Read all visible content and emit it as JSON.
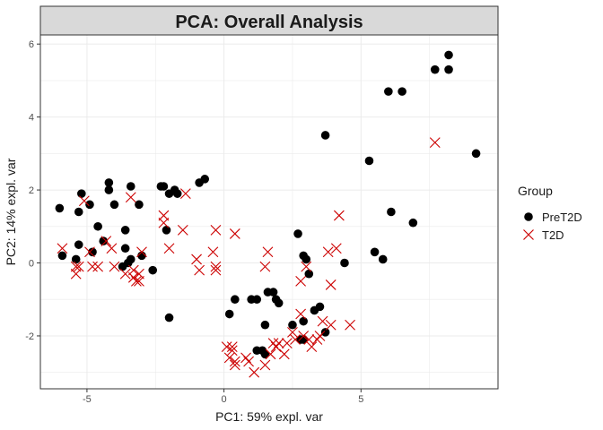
{
  "chart_data": {
    "type": "scatter",
    "title": "PCA: Overall Analysis",
    "xlabel": "PC1: 59% expl. var",
    "ylabel": "PC2: 14% expl. var",
    "xlim": [
      -6.7,
      10
    ],
    "ylim": [
      -3.45,
      6.25
    ],
    "x_ticks": [
      -5,
      0,
      5
    ],
    "y_ticks": [
      -2,
      0,
      2,
      4,
      6
    ],
    "grid": true,
    "legend": {
      "title": "Group",
      "position": "right"
    },
    "series": [
      {
        "name": "PreT2D",
        "marker": "circle",
        "color": "#000000",
        "points": [
          [
            -6.0,
            1.5
          ],
          [
            -5.9,
            0.2
          ],
          [
            -5.2,
            1.9
          ],
          [
            -5.3,
            1.4
          ],
          [
            -5.3,
            0.5
          ],
          [
            -5.4,
            0.1
          ],
          [
            -4.9,
            1.6
          ],
          [
            -4.8,
            0.3
          ],
          [
            -4.6,
            1.0
          ],
          [
            -4.4,
            0.6
          ],
          [
            -4.2,
            2.2
          ],
          [
            -4.2,
            2.0
          ],
          [
            -4.0,
            1.6
          ],
          [
            -3.6,
            0.9
          ],
          [
            -3.6,
            0.4
          ],
          [
            -3.4,
            2.1
          ],
          [
            -3.1,
            1.6
          ],
          [
            -3.0,
            0.2
          ],
          [
            -3.5,
            0.0
          ],
          [
            -3.7,
            -0.1
          ],
          [
            -3.4,
            0.1
          ],
          [
            -2.6,
            -0.2
          ],
          [
            -2.3,
            2.1
          ],
          [
            -2.2,
            2.1
          ],
          [
            -2.0,
            1.9
          ],
          [
            -2.1,
            0.9
          ],
          [
            -1.8,
            2.0
          ],
          [
            -1.7,
            1.9
          ],
          [
            -0.9,
            2.2
          ],
          [
            -0.7,
            2.3
          ],
          [
            -2.0,
            -1.5
          ],
          [
            0.2,
            -1.4
          ],
          [
            0.4,
            -1.0
          ],
          [
            1.0,
            -1.0
          ],
          [
            1.2,
            -1.0
          ],
          [
            1.5,
            -1.7
          ],
          [
            1.6,
            -0.8
          ],
          [
            1.8,
            -0.8
          ],
          [
            1.9,
            -1.0
          ],
          [
            2.0,
            -1.1
          ],
          [
            1.2,
            -2.4
          ],
          [
            1.4,
            -2.4
          ],
          [
            1.5,
            -2.5
          ],
          [
            2.5,
            -1.7
          ],
          [
            2.7,
            0.8
          ],
          [
            2.9,
            0.2
          ],
          [
            3.0,
            0.1
          ],
          [
            3.1,
            -0.3
          ],
          [
            2.9,
            -1.6
          ],
          [
            3.3,
            -1.3
          ],
          [
            3.5,
            -1.2
          ],
          [
            3.7,
            -1.9
          ],
          [
            2.9,
            -2.1
          ],
          [
            2.8,
            -2.1
          ],
          [
            4.4,
            0.0
          ],
          [
            3.7,
            3.5
          ],
          [
            5.3,
            2.8
          ],
          [
            5.5,
            0.3
          ],
          [
            5.8,
            0.1
          ],
          [
            6.0,
            4.7
          ],
          [
            6.1,
            1.4
          ],
          [
            6.5,
            4.7
          ],
          [
            6.9,
            1.1
          ],
          [
            7.7,
            5.3
          ],
          [
            8.2,
            5.7
          ],
          [
            8.2,
            5.3
          ],
          [
            9.2,
            3.0
          ]
        ]
      },
      {
        "name": "T2D",
        "marker": "x",
        "color": "#cc0000",
        "points": [
          [
            -5.9,
            0.4
          ],
          [
            -5.4,
            -0.1
          ],
          [
            -5.4,
            -0.3
          ],
          [
            -5.3,
            -0.1
          ],
          [
            -5.1,
            1.7
          ],
          [
            -4.9,
            0.3
          ],
          [
            -4.8,
            -0.1
          ],
          [
            -4.6,
            -0.1
          ],
          [
            -4.3,
            0.6
          ],
          [
            -4.1,
            0.4
          ],
          [
            -4.0,
            -0.1
          ],
          [
            -3.6,
            -0.3
          ],
          [
            -3.4,
            1.8
          ],
          [
            -3.3,
            -0.2
          ],
          [
            -3.3,
            -0.4
          ],
          [
            -3.2,
            -0.5
          ],
          [
            -3.1,
            -0.3
          ],
          [
            -3.0,
            0.3
          ],
          [
            -3.1,
            -0.5
          ],
          [
            -2.2,
            1.3
          ],
          [
            -2.2,
            1.1
          ],
          [
            -2.0,
            0.4
          ],
          [
            -1.5,
            0.9
          ],
          [
            -1.4,
            1.9
          ],
          [
            -1.0,
            0.1
          ],
          [
            -0.9,
            -0.2
          ],
          [
            -0.4,
            0.3
          ],
          [
            -0.3,
            -0.1
          ],
          [
            -0.3,
            -0.2
          ],
          [
            -0.3,
            0.9
          ],
          [
            0.4,
            0.8
          ],
          [
            0.1,
            -2.3
          ],
          [
            0.2,
            -2.6
          ],
          [
            0.3,
            -2.4
          ],
          [
            0.3,
            -2.3
          ],
          [
            0.4,
            -2.8
          ],
          [
            0.4,
            -2.7
          ],
          [
            0.8,
            -2.6
          ],
          [
            0.9,
            -2.7
          ],
          [
            1.1,
            -3.0
          ],
          [
            1.5,
            -2.8
          ],
          [
            1.7,
            -2.5
          ],
          [
            1.8,
            -2.2
          ],
          [
            1.9,
            -2.3
          ],
          [
            2.0,
            -2.2
          ],
          [
            2.2,
            -2.5
          ],
          [
            2.3,
            -2.2
          ],
          [
            2.5,
            -1.9
          ],
          [
            2.6,
            -2.1
          ],
          [
            2.8,
            -1.4
          ],
          [
            2.9,
            -2.0
          ],
          [
            3.1,
            -2.1
          ],
          [
            3.2,
            -2.3
          ],
          [
            3.4,
            -2.1
          ],
          [
            3.5,
            -2.0
          ],
          [
            3.9,
            -1.7
          ],
          [
            3.6,
            -1.6
          ],
          [
            1.6,
            0.3
          ],
          [
            1.5,
            -0.1
          ],
          [
            2.8,
            -0.5
          ],
          [
            3.0,
            -0.1
          ],
          [
            3.8,
            0.3
          ],
          [
            3.9,
            -0.6
          ],
          [
            4.2,
            1.3
          ],
          [
            4.1,
            0.4
          ],
          [
            4.6,
            -1.7
          ],
          [
            7.7,
            3.3
          ]
        ]
      }
    ]
  }
}
